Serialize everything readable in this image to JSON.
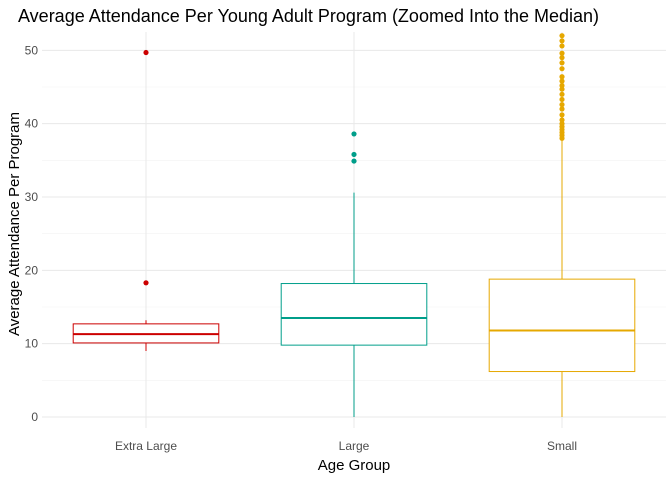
{
  "chart_data": {
    "type": "boxplot",
    "title": "Average Attendance Per Young Adult Program (Zoomed Into the Median)",
    "xlabel": "Age Group",
    "ylabel": "Average Attendance Per Program",
    "ylim": [
      -1.5,
      52.5
    ],
    "y_ticks": [
      0,
      10,
      20,
      30,
      40,
      50
    ],
    "y_tick_labels": [
      "0",
      "10",
      "20",
      "30",
      "40",
      "50"
    ],
    "grid": true,
    "categories": [
      "Extra Large",
      "Large",
      "Small"
    ],
    "boxes": [
      {
        "category": "Extra Large",
        "color": "#cc0000",
        "whisker_low": 9.0,
        "q1": 10.1,
        "median": 11.3,
        "q3": 12.7,
        "whisker_high": 13.2,
        "outliers": [
          18.3,
          49.7
        ]
      },
      {
        "category": "Large",
        "color": "#009e8a",
        "whisker_low": 0.0,
        "q1": 9.8,
        "median": 13.5,
        "q3": 18.2,
        "whisker_high": 30.6,
        "outliers": [
          34.9,
          35.8,
          38.6
        ]
      },
      {
        "category": "Small",
        "color": "#e6a800",
        "whisker_low": 0.0,
        "q1": 6.2,
        "median": 11.8,
        "q3": 18.8,
        "whisker_high": 37.7,
        "outliers": [
          38.0,
          38.4,
          38.8,
          39.2,
          39.6,
          40.0,
          40.5,
          41.2,
          42.0,
          42.6,
          43.3,
          44.0,
          44.7,
          45.2,
          45.8,
          46.4,
          47.5,
          48.3,
          49.0,
          49.6,
          50.6,
          51.3,
          52.0
        ]
      }
    ]
  }
}
